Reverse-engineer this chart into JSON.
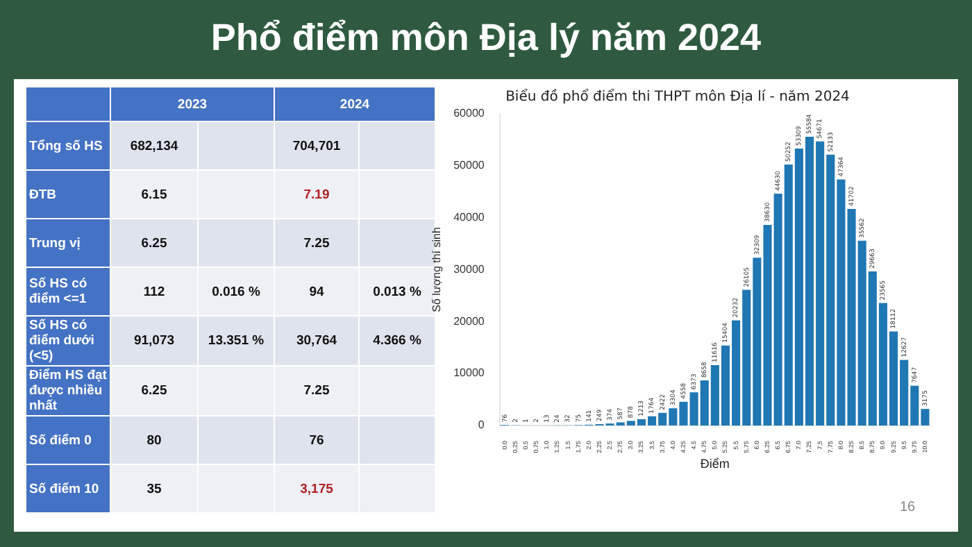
{
  "chart_data": [
    {
      "type": "other",
      "title": "Phổ điểm môn Địa lý năm 2024",
      "annotations": [
        "16"
      ],
      "categories": [
        "2023",
        "2024"
      ],
      "y_categories": [
        "Tổng số HS",
        "ĐTB",
        "Trung vị",
        "Số HS có điểm <=1",
        "Số HS có điểm dưới (<5)",
        "Điểm HS đạt được nhiều nhất",
        "Số điểm 0",
        "Số điểm 10"
      ],
      "cell_labels": [
        [
          "682,134",
          null,
          "704,701",
          null
        ],
        [
          "6.15",
          null,
          "7.19",
          null
        ],
        [
          "6.25",
          null,
          "7.25",
          null
        ],
        [
          "112",
          "0.016 %",
          "94",
          "0.013 %"
        ],
        [
          "91,073",
          "13.351 %",
          "30,764",
          "4.366 %"
        ],
        [
          "6.25",
          null,
          "7.25",
          null
        ],
        [
          "80",
          null,
          "76",
          null
        ],
        [
          "35",
          null,
          "3,175",
          null
        ]
      ],
      "colors": [
        [
          null,
          null,
          null,
          null
        ],
        [
          null,
          null,
          "#b22222",
          null
        ],
        [
          null,
          null,
          null,
          null
        ],
        [
          null,
          null,
          null,
          null
        ],
        [
          null,
          null,
          null,
          null
        ],
        [
          null,
          null,
          null,
          null
        ],
        [
          null,
          null,
          null,
          null
        ],
        [
          null,
          null,
          "#b22222",
          null
        ]
      ]
    },
    {
      "type": "bar",
      "title": "Biểu đồ phổ điểm thi THPT môn Địa lí - năm 2024",
      "xlabel": "Điểm",
      "ylabel": "Số lượng thí sinh",
      "categories": [
        "0.0",
        "0.25",
        "0.5",
        "0.75",
        "1.0",
        "1.25",
        "1.5",
        "1.75",
        "2.0",
        "2.25",
        "2.5",
        "2.75",
        "3.0",
        "3.25",
        "3.5",
        "3.75",
        "4.0",
        "4.25",
        "4.5",
        "4.75",
        "5.0",
        "5.25",
        "5.5",
        "5.75",
        "6.0",
        "6.25",
        "6.5",
        "6.75",
        "7.0",
        "7.25",
        "7.5",
        "7.75",
        "8.0",
        "8.25",
        "8.5",
        "8.75",
        "9.0",
        "9.25",
        "9.5",
        "9.75",
        "10.0"
      ],
      "values": [
        76,
        2,
        1,
        2,
        13,
        24,
        32,
        75,
        141,
        249,
        374,
        587,
        878,
        1213,
        1764,
        2422,
        3304,
        4558,
        6373,
        8658,
        11616,
        15404,
        20232,
        26105,
        32309,
        38630,
        44630,
        50252,
        53309,
        55584,
        54671,
        52133,
        47364,
        41702,
        35562,
        29663,
        23565,
        18112,
        12627,
        7647,
        3175
      ],
      "color": "#1f77b4",
      "ylim": [
        0,
        60000
      ],
      "yticks": [
        0,
        10000,
        20000,
        30000,
        40000,
        50000,
        60000
      ],
      "data_labels": true,
      "grid": false,
      "legend": false
    }
  ]
}
